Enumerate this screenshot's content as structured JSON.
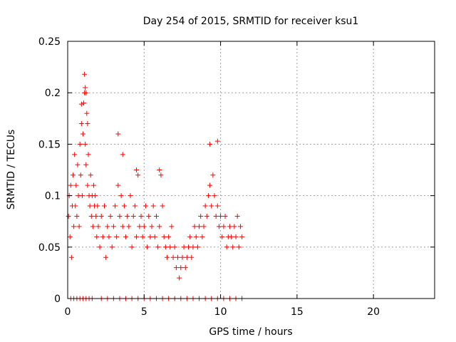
{
  "chart_data": {
    "type": "scatter",
    "title": "Day 254 of 2015, SRMTID for receiver ksu1",
    "xlabel": "GPS time / hours",
    "ylabel": "SRMTID / TECUs",
    "xlim": [
      0,
      24
    ],
    "ylim": [
      0,
      0.25
    ],
    "xticks": [
      0,
      5,
      10,
      15,
      20
    ],
    "xtick_labels": [
      "0",
      "5",
      "10",
      "15",
      "20"
    ],
    "yticks": [
      0,
      0.05,
      0.1,
      0.15,
      0.2,
      0.25
    ],
    "ytick_labels": [
      "0",
      "0.05",
      "0.1",
      "0.15",
      "0.2",
      "0.25"
    ],
    "grid": true,
    "marker": "+",
    "color": "#ff0000",
    "series": [
      {
        "name": "SRMTID",
        "x": [
          0.05,
          0.1,
          0.15,
          0.2,
          0.25,
          0.3,
          0.35,
          0.4,
          0.45,
          0.5,
          0.55,
          0.6,
          0.65,
          0.7,
          0.75,
          0.8,
          0.85,
          0.9,
          0.95,
          1.0,
          1.05,
          1.1,
          1.15,
          1.2,
          1.25,
          1.3,
          1.35,
          1.4,
          1.45,
          1.5,
          1.55,
          1.6,
          1.65,
          1.7,
          1.75,
          1.8,
          1.85,
          1.9,
          1.95,
          2.0,
          2.1,
          2.2,
          2.3,
          2.4,
          2.5,
          2.6,
          2.7,
          2.8,
          2.9,
          3.0,
          3.1,
          3.2,
          3.3,
          3.4,
          3.5,
          3.6,
          3.7,
          3.8,
          3.9,
          4.0,
          4.1,
          4.2,
          4.3,
          4.4,
          4.5,
          4.6,
          4.7,
          4.8,
          4.9,
          5.0,
          5.1,
          5.2,
          5.3,
          5.4,
          5.5,
          5.6,
          5.7,
          5.8,
          5.9,
          6.0,
          6.1,
          6.2,
          6.3,
          6.4,
          6.5,
          6.6,
          6.7,
          6.8,
          6.9,
          7.0,
          7.1,
          7.2,
          7.3,
          7.4,
          7.5,
          7.6,
          7.7,
          7.8,
          7.9,
          8.0,
          8.1,
          8.2,
          8.3,
          8.4,
          8.5,
          8.6,
          8.7,
          8.8,
          8.9,
          9.0,
          9.1,
          9.2,
          9.3,
          9.4,
          9.5,
          9.6,
          9.7,
          9.8,
          9.9,
          10.0,
          10.1,
          10.2,
          10.3,
          10.4,
          10.5,
          10.6,
          10.7,
          10.8,
          10.9,
          11.0,
          11.1,
          11.2,
          11.3,
          11.4,
          0.2,
          0.4,
          0.6,
          0.8,
          1.0,
          1.2,
          1.4,
          1.6,
          2.2,
          2.6,
          3.0,
          3.4,
          3.8,
          4.2,
          4.6,
          5.0,
          5.4,
          5.8,
          6.2,
          6.6,
          7.0,
          7.4,
          7.8,
          8.2,
          8.6,
          9.0,
          9.4,
          9.8,
          10.2,
          10.6,
          11.0,
          11.4,
          1.1,
          1.15,
          1.2,
          0.9,
          1.3,
          3.3,
          4.5,
          9.8,
          9.3,
          6.0,
          3.6
        ],
        "y": [
          0.08,
          0.1,
          0.06,
          0.11,
          0.04,
          0.09,
          0.12,
          0.07,
          0.14,
          0.09,
          0.11,
          0.08,
          0.13,
          0.1,
          0.07,
          0.15,
          0.12,
          0.17,
          0.1,
          0.16,
          0.19,
          0.2,
          0.15,
          0.13,
          0.18,
          0.11,
          0.14,
          0.1,
          0.09,
          0.12,
          0.08,
          0.1,
          0.07,
          0.11,
          0.09,
          0.1,
          0.08,
          0.06,
          0.09,
          0.07,
          0.05,
          0.08,
          0.06,
          0.09,
          0.04,
          0.07,
          0.06,
          0.08,
          0.05,
          0.07,
          0.09,
          0.06,
          0.11,
          0.08,
          0.1,
          0.07,
          0.09,
          0.06,
          0.08,
          0.07,
          0.1,
          0.05,
          0.08,
          0.09,
          0.06,
          0.12,
          0.07,
          0.08,
          0.06,
          0.07,
          0.09,
          0.05,
          0.08,
          0.06,
          0.07,
          0.09,
          0.06,
          0.08,
          0.05,
          0.07,
          0.12,
          0.09,
          0.06,
          0.05,
          0.04,
          0.06,
          0.05,
          0.07,
          0.04,
          0.05,
          0.03,
          0.04,
          0.02,
          0.03,
          0.04,
          0.05,
          0.03,
          0.04,
          0.05,
          0.06,
          0.04,
          0.05,
          0.07,
          0.06,
          0.05,
          0.07,
          0.08,
          0.06,
          0.07,
          0.09,
          0.08,
          0.1,
          0.11,
          0.09,
          0.12,
          0.1,
          0.08,
          0.09,
          0.07,
          0.08,
          0.06,
          0.07,
          0.08,
          0.05,
          0.06,
          0.07,
          0.06,
          0.05,
          0.07,
          0.06,
          0.08,
          0.05,
          0.07,
          0.06,
          0.0,
          0.0,
          0.0,
          0.0,
          0.0,
          0.0,
          0.0,
          0.0,
          0.0,
          0.0,
          0.0,
          0.0,
          0.0,
          0.0,
          0.0,
          0.0,
          0.0,
          0.0,
          0.0,
          0.0,
          0.0,
          0.0,
          0.0,
          0.0,
          0.0,
          0.0,
          0.0,
          0.0,
          0.0,
          0.0,
          0.0,
          0.0,
          0.218,
          0.205,
          0.2,
          0.189,
          0.17,
          0.16,
          0.125,
          0.153,
          0.15,
          0.125,
          0.14
        ]
      }
    ]
  }
}
